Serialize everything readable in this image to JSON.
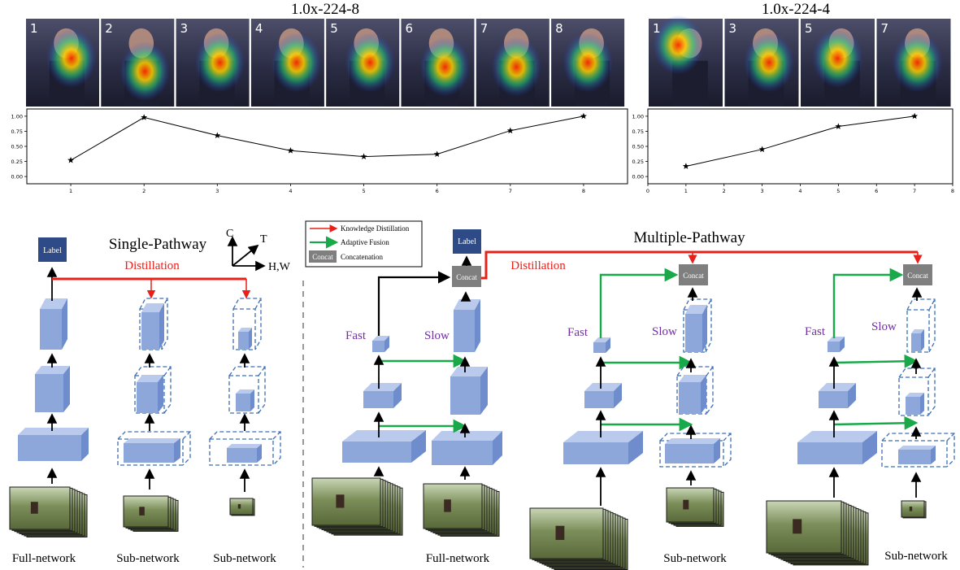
{
  "top_left": {
    "title": "1.0x-224-8",
    "frames": [
      "1",
      "2",
      "3",
      "4",
      "5",
      "6",
      "7",
      "8"
    ],
    "chart_data": {
      "type": "line",
      "x": [
        1,
        2,
        3,
        4,
        5,
        6,
        7,
        8
      ],
      "y": [
        0.27,
        0.98,
        0.68,
        0.43,
        0.33,
        0.37,
        0.76,
        1.0
      ],
      "xlim": [
        0.4,
        8.6
      ],
      "ylim": [
        -0.12,
        1.12
      ],
      "xticks": [
        "1",
        "2",
        "3",
        "4",
        "5",
        "6",
        "7",
        "8"
      ],
      "yticks": [
        "0.00",
        "0.25",
        "0.50",
        "0.75",
        "1.00"
      ],
      "marker": "star",
      "grid": false
    }
  },
  "top_right": {
    "title": "1.0x-224-4",
    "frames": [
      "1",
      "3",
      "5",
      "7"
    ],
    "chart_data": {
      "type": "line",
      "x": [
        1,
        3,
        5,
        7
      ],
      "y": [
        0.17,
        0.45,
        0.83,
        1.0
      ],
      "xlim": [
        0,
        8
      ],
      "ylim": [
        -0.12,
        1.12
      ],
      "xticks": [
        "0",
        "1",
        "2",
        "3",
        "4",
        "5",
        "6",
        "7",
        "8"
      ],
      "yticks": [
        "0.00",
        "0.25",
        "0.50",
        "0.75",
        "1.00"
      ],
      "marker": "star",
      "grid": false
    }
  },
  "single": {
    "title": "Single-Pathway",
    "distillation": "Distillation",
    "label_box": "Label",
    "axes": {
      "c": "C",
      "t": "T",
      "hw": "H,W"
    },
    "captions": [
      "Full-network",
      "Sub-network",
      "Sub-network"
    ]
  },
  "multi": {
    "title": "Multiple-Pathway",
    "distillation": "Distillation",
    "label_box": "Label",
    "concat": "Concat",
    "fast": "Fast",
    "slow": "Slow",
    "captions": [
      "Full-network",
      "Sub-network",
      "Sub-network"
    ]
  },
  "legend": {
    "kd": "Knowledge Distillation",
    "af": "Adaptive Fusion",
    "concat_box": "Concat",
    "concat_text": "Concatenation"
  },
  "colors": {
    "block": "#8ea7db",
    "block_top": "#b9caec",
    "block_side": "#6f8ccc",
    "label_box": "#2e4a87",
    "concat_box": "#7f7f7f",
    "distill_arrow": "#e8201a",
    "fusion_arrow": "#19a84a",
    "dashed": "#3d6fb5",
    "fast_slow_text": "#7030a0"
  }
}
